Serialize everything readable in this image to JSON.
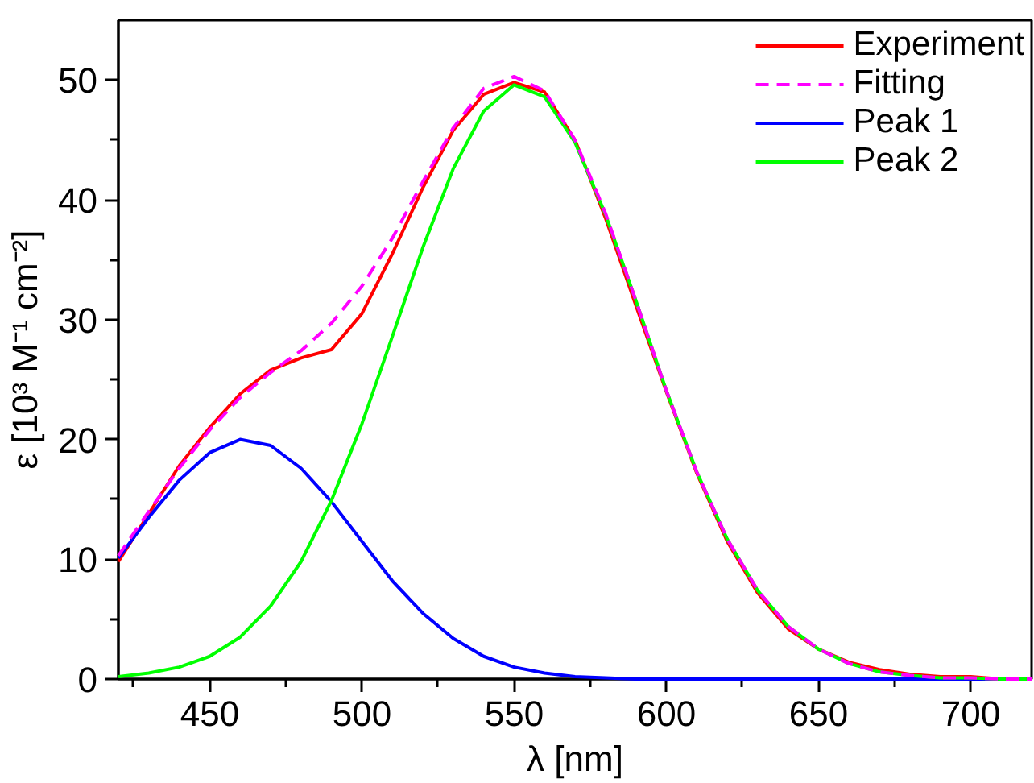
{
  "chart_data": {
    "type": "line",
    "xlabel": "λ [nm]",
    "ylabel": "ε [10³ M⁻¹ cm⁻²]",
    "x": [
      420,
      430,
      440,
      450,
      460,
      470,
      480,
      490,
      500,
      510,
      520,
      530,
      540,
      550,
      560,
      570,
      580,
      590,
      600,
      610,
      620,
      630,
      640,
      650,
      660,
      670,
      680,
      690,
      700,
      710,
      720
    ],
    "xlim": [
      420,
      720
    ],
    "ylim": [
      0,
      55
    ],
    "xticks": [
      {
        "value": 425,
        "label": null
      },
      450,
      {
        "value": 475,
        "label": null
      },
      500,
      {
        "value": 525,
        "label": null
      },
      550,
      {
        "value": 575,
        "label": null
      },
      600,
      {
        "value": 625,
        "label": null
      },
      650,
      {
        "value": 675,
        "label": null
      },
      700
    ],
    "yticks": [
      0,
      {
        "value": 5,
        "label": null
      },
      10,
      {
        "value": 15,
        "label": null
      },
      20,
      {
        "value": 25,
        "label": null
      },
      30,
      {
        "value": 35,
        "label": null
      },
      40,
      {
        "value": 45,
        "label": null
      },
      50
    ],
    "grid": false,
    "legend": "top right",
    "marker": "none",
    "series": [
      {
        "name": "Experiment",
        "color": "#ff0000",
        "line_style": "solid",
        "values": [
          9.8,
          13.8,
          17.8,
          21.0,
          23.8,
          25.8,
          26.8,
          27.5,
          30.5,
          35.5,
          41.0,
          45.8,
          48.8,
          49.8,
          49.0,
          45.0,
          38.5,
          31.2,
          24.0,
          17.2,
          11.5,
          7.2,
          4.2,
          2.5,
          1.4,
          0.8,
          0.4,
          0.2,
          0.2,
          0.0,
          0.0
        ]
      },
      {
        "name": "Fitting",
        "color": "#ff00ff",
        "line_style": "dashed",
        "values": [
          10.3,
          14.0,
          17.6,
          20.8,
          23.5,
          25.6,
          27.4,
          29.7,
          32.8,
          36.8,
          41.5,
          46.0,
          49.3,
          50.3,
          49.1,
          45.0,
          38.9,
          31.6,
          24.1,
          17.3,
          11.7,
          7.4,
          4.4,
          2.5,
          1.3,
          0.6,
          0.3,
          0.1,
          0.1,
          0.0,
          0.0
        ]
      },
      {
        "name": "Peak 1",
        "color": "#0000ff",
        "line_style": "solid",
        "values": [
          10.1,
          13.5,
          16.6,
          18.9,
          20.0,
          19.5,
          17.6,
          14.8,
          11.5,
          8.2,
          5.5,
          3.4,
          1.9,
          1.0,
          0.5,
          0.2,
          0.1,
          0.0,
          0.0,
          0.0,
          0.0,
          0.0,
          0.0,
          0.0,
          0.0,
          0.0,
          0.0,
          0.0,
          0.0,
          0.0,
          0.0
        ]
      },
      {
        "name": "Peak 2",
        "color": "#00ff00",
        "line_style": "solid",
        "values": [
          0.2,
          0.5,
          1.0,
          1.9,
          3.5,
          6.1,
          9.8,
          14.9,
          21.3,
          28.6,
          36.0,
          42.6,
          47.4,
          49.6,
          48.6,
          44.8,
          38.8,
          31.6,
          24.1,
          17.3,
          11.7,
          7.4,
          4.4,
          2.5,
          1.3,
          0.6,
          0.3,
          0.1,
          0.1,
          0.0,
          0.0
        ]
      }
    ]
  }
}
